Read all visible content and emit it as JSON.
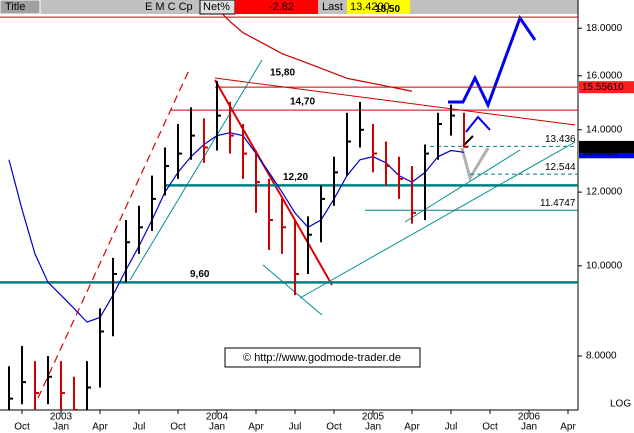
{
  "header": {
    "title": "Title",
    "symbol": "E M C Cp",
    "net_label": "Net%",
    "net": "-2.82",
    "last_label": "Last",
    "last": "13.4200"
  },
  "chart_data": {
    "type": "ohlc",
    "x": [
      "2002-09",
      "2002-10",
      "2002-11",
      "2002-12",
      "2003-01",
      "2003-02",
      "2003-03",
      "2003-04",
      "2003-05",
      "2003-06",
      "2003-07",
      "2003-08",
      "2003-09",
      "2003-10",
      "2003-11",
      "2003-12",
      "2004-01",
      "2004-02",
      "2004-03",
      "2004-04",
      "2004-05",
      "2004-06",
      "2004-07",
      "2004-08",
      "2004-09",
      "2004-10",
      "2004-11",
      "2004-12",
      "2005-01",
      "2005-02",
      "2005-03",
      "2005-04",
      "2005-05",
      "2005-06",
      "2005-07",
      "2005-08"
    ],
    "high": [
      7.8,
      8.2,
      7.9,
      8.0,
      7.9,
      7.6,
      7.9,
      9.0,
      10.2,
      11.2,
      11.6,
      12.5,
      13.4,
      14.2,
      14.8,
      14.4,
      15.8,
      15.0,
      14.2,
      13.3,
      12.4,
      11.8,
      11.2,
      11.3,
      12.2,
      13.1,
      14.6,
      15.0,
      14.2,
      13.6,
      13.1,
      12.8,
      13.5,
      14.6,
      14.9,
      14.6
    ],
    "low": [
      7.0,
      7.1,
      7.0,
      7.1,
      7.0,
      6.9,
      7.0,
      7.4,
      8.4,
      9.6,
      10.3,
      10.9,
      11.9,
      12.4,
      13.0,
      12.9,
      13.3,
      13.2,
      12.4,
      11.4,
      10.4,
      10.3,
      9.3,
      9.8,
      10.6,
      11.6,
      12.5,
      13.4,
      12.6,
      12.2,
      11.8,
      11.1,
      11.2,
      13.0,
      13.8,
      13.4
    ],
    "close": [
      7.2,
      7.5,
      7.3,
      7.6,
      7.3,
      7.0,
      7.4,
      8.5,
      9.8,
      10.6,
      11.0,
      11.8,
      12.8,
      13.2,
      13.8,
      13.4,
      14.5,
      13.8,
      13.2,
      12.3,
      11.2,
      11.0,
      9.8,
      10.8,
      11.8,
      12.6,
      13.6,
      14.0,
      13.2,
      12.8,
      12.4,
      11.4,
      13.2,
      14.2,
      14.5,
      13.42
    ],
    "up_color": "#000000",
    "down_color": "#cc0000",
    "averages": [
      {
        "color": "#0000cc",
        "values": [
          13.0,
          11.5,
          10.3,
          9.6,
          9.3,
          9.0,
          8.7,
          8.8,
          9.3,
          9.9,
          10.5,
          11.2,
          12.0,
          12.6,
          13.1,
          13.5,
          13.8,
          13.9,
          13.8,
          13.2,
          12.6,
          12.0,
          11.4,
          11.0,
          11.2,
          11.8,
          12.5,
          13.0,
          13.1,
          12.9,
          12.5,
          12.3,
          12.6,
          13.1,
          13.3,
          13.242
        ]
      },
      {
        "color": "#cc0000",
        "values": [
          null,
          null,
          null,
          null,
          null,
          null,
          null,
          null,
          null,
          null,
          null,
          null,
          null,
          null,
          null,
          null,
          18.9,
          18.3,
          17.8,
          17.5,
          17.2,
          16.9,
          16.7,
          16.5,
          16.3,
          16.1,
          15.9,
          15.8,
          15.7,
          15.6,
          15.5,
          15.4,
          null,
          null,
          null,
          null
        ]
      }
    ],
    "levels": [
      {
        "value": 18.5,
        "label": "18,50",
        "color": "#cc0000",
        "style": "solid"
      },
      {
        "value": 15.5561,
        "color": "#cc0000",
        "style": "solid"
      },
      {
        "value": 15.8,
        "label": "15,80",
        "line": false
      },
      {
        "value": 14.7,
        "label": "14,70",
        "color": "#cc0000",
        "style": "solid"
      },
      {
        "value": 13.436,
        "color": "#008080",
        "style": "dashed"
      },
      {
        "value": 12.544,
        "color": "#008080",
        "style": "dashed"
      },
      {
        "value": 12.2,
        "label": "12,20",
        "color": "#008080",
        "style": "thick"
      },
      {
        "value": 11.4747,
        "color": "#008080",
        "style": "solid"
      },
      {
        "value": 9.6,
        "label": "9,60",
        "color": "#008080",
        "style": "thick"
      }
    ],
    "price_tags": [
      {
        "value": 15.5561,
        "label": "15.55610",
        "color": "#ff2020"
      },
      {
        "value": 13.242,
        "label": "13.2420",
        "color": "#0000ff"
      },
      {
        "value": 13.42,
        "label": "13.4200",
        "color": "#000000"
      }
    ],
    "ylim": [
      7.0,
      19.3
    ],
    "log": true,
    "yticks": [
      {
        "value": 8,
        "label": "8.0000"
      },
      {
        "value": 10,
        "label": "10.0000"
      },
      {
        "value": 12,
        "label": "12.0000"
      },
      {
        "value": 14,
        "label": "14.0000"
      },
      {
        "value": 16,
        "label": "16.0000"
      },
      {
        "value": 18,
        "label": "18.0000"
      }
    ],
    "xticks": [
      {
        "value": "2002-10",
        "label": "Oct"
      },
      {
        "value": "2003-01",
        "label": "Jan"
      },
      {
        "value": "2003-04",
        "label": "Apr"
      },
      {
        "value": "2003-07",
        "label": "Jul"
      },
      {
        "value": "2003-10",
        "label": "Oct"
      },
      {
        "value": "2004-01",
        "label": "Jan"
      },
      {
        "value": "2004-04",
        "label": "Apr"
      },
      {
        "value": "2004-07",
        "label": "Jul"
      },
      {
        "value": "2004-10",
        "label": "Oct"
      },
      {
        "value": "2005-01",
        "label": "Jan"
      },
      {
        "value": "2005-04",
        "label": "Apr"
      },
      {
        "value": "2005-07",
        "label": "Jul"
      },
      {
        "value": "2005-10",
        "label": "Oct"
      },
      {
        "value": "2006-01",
        "label": "Jan"
      },
      {
        "value": "2006-04",
        "label": "Apr"
      }
    ],
    "year_ticks": [
      {
        "value": "2003-01",
        "label": "2003"
      },
      {
        "value": "2004-01",
        "label": "2004"
      },
      {
        "value": "2005-01",
        "label": "2005"
      },
      {
        "value": "2006-01",
        "label": "2006"
      }
    ],
    "scale_label": "LOG",
    "watermark": "© http://www.godmode-trader.de"
  }
}
